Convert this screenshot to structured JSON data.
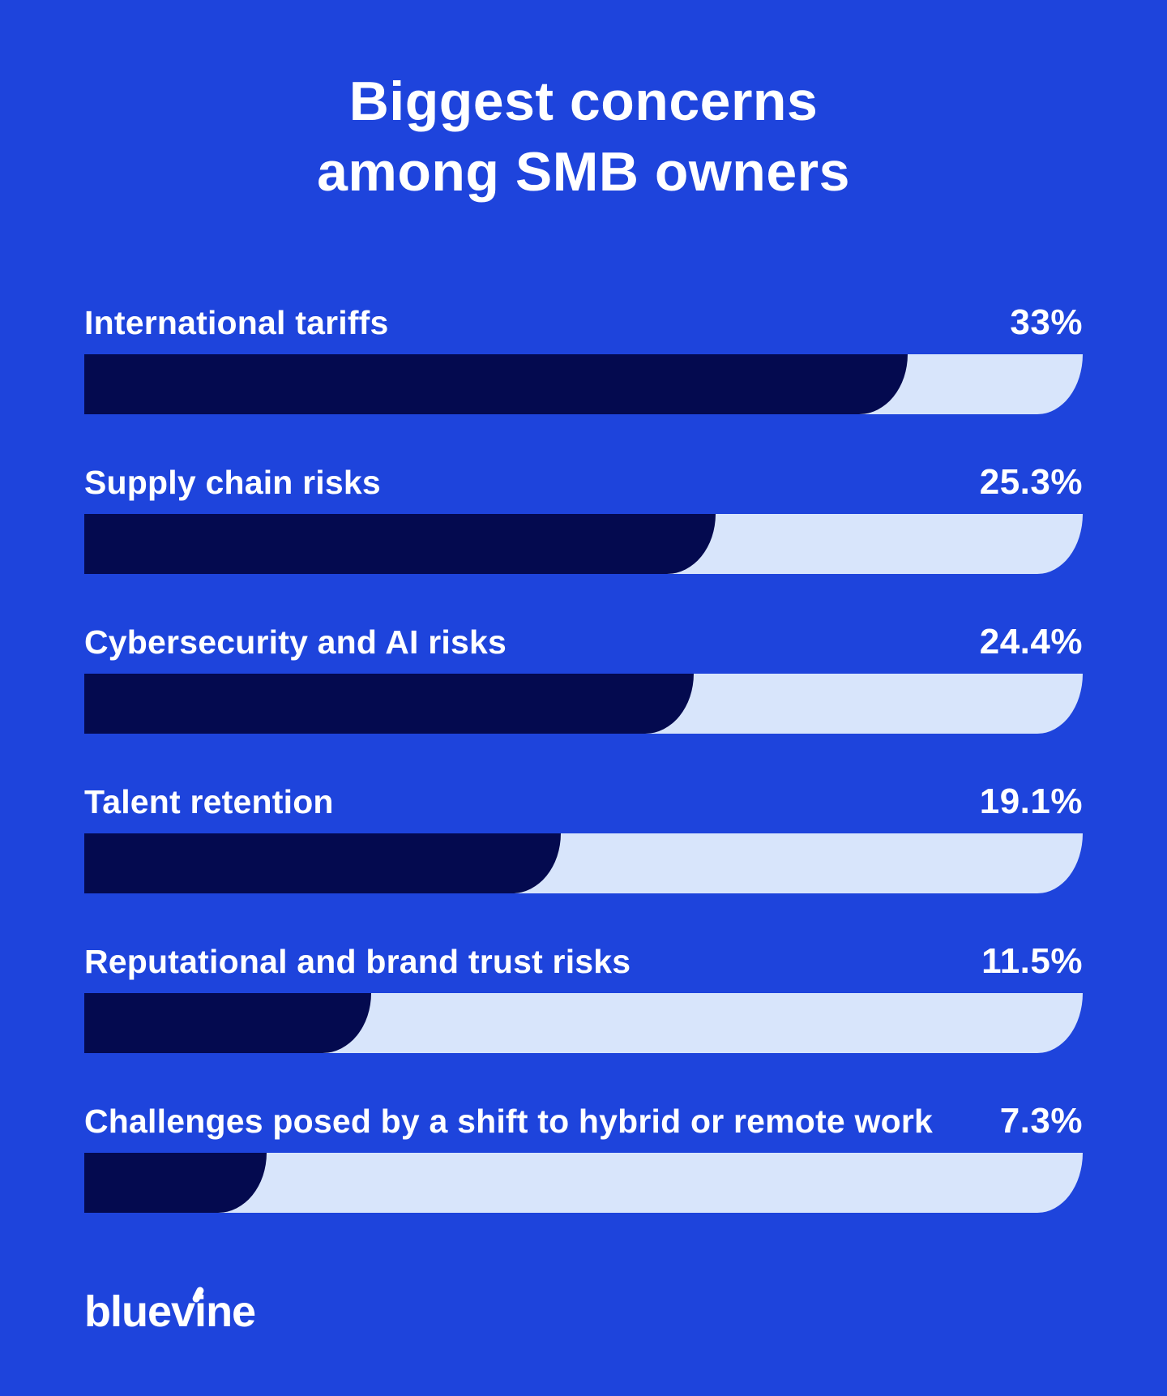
{
  "header": {
    "title_line1": "Biggest concerns",
    "title_line2": "among SMB owners"
  },
  "chart_data": {
    "type": "bar",
    "orientation": "horizontal",
    "title": "Biggest concerns among SMB owners",
    "categories": [
      "International tariffs",
      "Supply chain risks",
      "Cybersecurity and AI risks",
      "Talent retention",
      "Reputational and brand trust risks",
      "Challenges posed by a shift to hybrid or remote work"
    ],
    "values": [
      33,
      25.3,
      24.4,
      19.1,
      11.5,
      7.3
    ],
    "value_labels": [
      "33%",
      "25.3%",
      "24.4%",
      "19.1%",
      "11.5%",
      "7.3%"
    ],
    "scale_max": 40,
    "grid": false,
    "legend_position": "none",
    "colors": {
      "background": "#1e44dc",
      "bar_fill": "#040a4f",
      "bar_track": "#d8e5fb",
      "text": "#ffffff"
    }
  },
  "footer": {
    "brand": "bluevine",
    "brand_pre": "bluev",
    "brand_i": "i",
    "brand_post": "ne"
  }
}
